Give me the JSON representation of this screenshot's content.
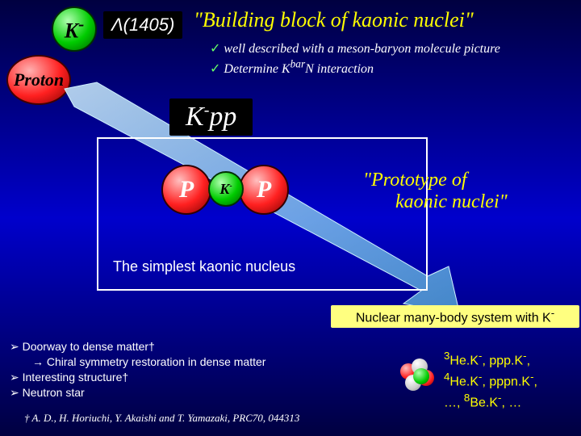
{
  "header": {
    "k_label": "K",
    "k_sup": "-",
    "lambda": "Λ(1405)",
    "proton": "Proton",
    "title": "\"Building block of kaonic nuclei\"",
    "checks": [
      "well described with a meson-baryon molecule picture",
      "Determine K<sup>bar</sup>N interaction"
    ]
  },
  "kpp": {
    "label_html": "K<sup>-</sup>pp",
    "p": "P",
    "k": "K",
    "k_sup": "-"
  },
  "prototype": {
    "line1": "\"Prototype of",
    "line2": "kaonic nuclei\""
  },
  "simplest": "The simplest kaonic nucleus",
  "yellow_bar": "Nuclear many-body system with K",
  "yellow_bar_sup": "-",
  "bullets": [
    "Doorway to dense matter†",
    "→ Chiral symmetry restoration in dense matter",
    "Interesting structure†",
    "Neutron star"
  ],
  "footnote": "† A. D., H. Horiuchi, Y. Akaishi and T. Yamazaki, PRC70, 044313",
  "nuclei": [
    "<sup>3</sup>He.K<sup>-</sup>, ppp.K<sup>-</sup>,",
    "<sup>4</sup>He.K<sup>-</sup>, pppn.K<sup>-</sup>,",
    "…, <sup>8</sup>Be.K<sup>-</sup>, …"
  ],
  "colors": {
    "bg_top": "#000040",
    "bg_mid": "#0000cc",
    "yellow": "#ffff00",
    "yellow_bar": "#ffff80",
    "green": "#00cc00",
    "red": "#ff2020",
    "white": "#ffffff",
    "arrow_fill": "#a0e0f0"
  }
}
